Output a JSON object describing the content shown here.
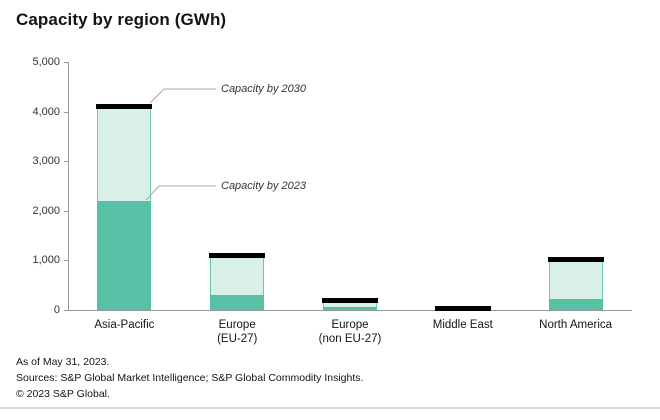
{
  "title": "Capacity by region (GWh)",
  "annotations": {
    "a2030": "Capacity by 2030",
    "a2023": "Capacity by 2023"
  },
  "footer": {
    "line1": "As of May 31, 2023.",
    "line2": "Sources: S&P Global Market Intelligence; S&P Global Commodity Insights.",
    "line3": "© 2023 S&P Global."
  },
  "colors": {
    "capacity_2023_fill": "#57c1a5",
    "capacity_2030_fill": "#d9f0e9",
    "capacity_2030_border": "#6cc7ae",
    "marker_2030": "#000000",
    "axis": "#999999"
  },
  "chart_data": {
    "type": "bar",
    "title": "Capacity by region (GWh)",
    "categories": [
      "Asia-Pacific",
      "Europe\n(EU-27)",
      "Europe\n(non EU-27)",
      "Middle East",
      "North America"
    ],
    "series": [
      {
        "name": "Capacity by 2023",
        "values": [
          2200,
          300,
          60,
          15,
          230
        ]
      },
      {
        "name": "Capacity by 2030",
        "values": [
          4070,
          1100,
          200,
          35,
          1010
        ]
      }
    ],
    "marker_name": "Capacity by 2030 marker",
    "marker_values": [
      4150,
      1150,
      250,
      80,
      1060
    ],
    "xlabel": "",
    "ylabel": "",
    "ylim": [
      0,
      5000
    ],
    "yticks": [
      0,
      1000,
      2000,
      3000,
      4000,
      5000
    ],
    "grid": false,
    "legend_position": "annotated-leader-lines"
  }
}
